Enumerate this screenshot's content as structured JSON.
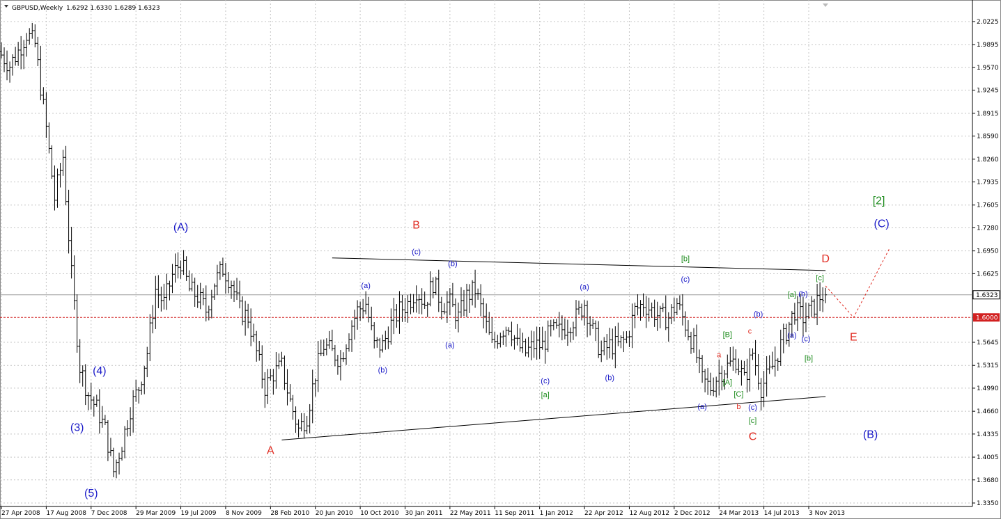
{
  "header": {
    "title": "GBPUSD,Weekly",
    "ohlc": "1.6292 1.6330 1.6289 1.6323"
  },
  "price_tags": {
    "last_price": "1.6323",
    "level_price": "1.6000"
  },
  "colors": {
    "blue": "#1a1ac8",
    "red": "#e0281e",
    "green": "#1e8c1e",
    "bars": "#000000",
    "grid": "#c4c4c4",
    "level_line": "#d22020"
  },
  "chart_data": {
    "type": "ohlc-bar",
    "symbol": "GBPUSD",
    "timeframe": "Weekly",
    "ylim": [
      1.335,
      2.04
    ],
    "y_ticks": [
      "2.0225",
      "1.9895",
      "1.9570",
      "1.9245",
      "1.8915",
      "1.8590",
      "1.8260",
      "1.7935",
      "1.7605",
      "1.7280",
      "1.6950",
      "1.6625",
      "1.6323",
      "1.6000",
      "1.5645",
      "1.5315",
      "1.4990",
      "1.4660",
      "1.4335",
      "1.4005",
      "1.3680",
      "1.3350"
    ],
    "x_ticks": [
      "27 Apr 2008",
      "17 Aug 2008",
      "7 Dec 2008",
      "29 Mar 2009",
      "19 Jul 2009",
      "8 Nov 2009",
      "28 Feb 2010",
      "20 Jun 2010",
      "10 Oct 2010",
      "30 Jan 2011",
      "22 May 2011",
      "11 Sep 2011",
      "1 Jan 2012",
      "22 Apr 2012",
      "12 Aug 2012",
      "2 Dec 2012",
      "24 Mar 2013",
      "14 Jul 2013",
      "3 Nov 2013"
    ],
    "path": [
      [
        "27 Apr 2008",
        1.975
      ],
      [
        "18 May 2008",
        1.96
      ],
      [
        "8 Jun 2008",
        1.98
      ],
      [
        "29 Jun 2008",
        2.005
      ],
      [
        "20 Jul 2008",
        1.99
      ],
      [
        "17 Aug 2008",
        1.87
      ],
      [
        "7 Sep 2008",
        1.77
      ],
      [
        "28 Sep 2008",
        1.83
      ],
      [
        "19 Oct 2008",
        1.66
      ],
      [
        "9 Nov 2008",
        1.53
      ],
      [
        "30 Nov 2008",
        1.49
      ],
      [
        "21 Dec 2008",
        1.47
      ],
      [
        "11 Jan 2009",
        1.44
      ],
      [
        "1 Feb 2009",
        1.38
      ],
      [
        "22 Feb 2009",
        1.42
      ],
      [
        "15 Mar 2009",
        1.47
      ],
      [
        "5 Apr 2009",
        1.5
      ],
      [
        "26 Apr 2009",
        1.55
      ],
      [
        "17 May 2009",
        1.64
      ],
      [
        "7 Jun 2009",
        1.62
      ],
      [
        "28 Jun 2009",
        1.66
      ],
      [
        "19 Jul 2009",
        1.68
      ],
      [
        "9 Aug 2009",
        1.64
      ],
      [
        "30 Aug 2009",
        1.63
      ],
      [
        "20 Sep 2009",
        1.61
      ],
      [
        "11 Oct 2009",
        1.65
      ],
      [
        "1 Nov 2009",
        1.67
      ],
      [
        "22 Nov 2009",
        1.65
      ],
      [
        "13 Dec 2009",
        1.61
      ],
      [
        "3 Jan 2010",
        1.6
      ],
      [
        "24 Jan 2010",
        1.55
      ],
      [
        "14 Feb 2010",
        1.5
      ],
      [
        "7 Mar 2010",
        1.52
      ],
      [
        "28 Mar 2010",
        1.53
      ],
      [
        "18 Apr 2010",
        1.48
      ],
      [
        "9 May 2010",
        1.44
      ],
      [
        "30 May 2010",
        1.46
      ],
      [
        "20 Jun 2010",
        1.52
      ],
      [
        "11 Jul 2010",
        1.56
      ],
      [
        "1 Aug 2010",
        1.55
      ],
      [
        "22 Aug 2010",
        1.54
      ],
      [
        "12 Sep 2010",
        1.58
      ],
      [
        "3 Oct 2010",
        1.61
      ],
      [
        "24 Oct 2010",
        1.62
      ],
      [
        "14 Nov 2010",
        1.56
      ],
      [
        "5 Dec 2010",
        1.56
      ],
      [
        "26 Dec 2010",
        1.59
      ],
      [
        "16 Jan 2011",
        1.61
      ],
      [
        "6 Feb 2011",
        1.62
      ],
      [
        "27 Feb 2011",
        1.64
      ],
      [
        "20 Mar 2011",
        1.62
      ],
      [
        "10 Apr 2011",
        1.65
      ],
      [
        "1 May 2011",
        1.62
      ],
      [
        "22 May 2011",
        1.62
      ],
      [
        "12 Jun 2011",
        1.6
      ],
      [
        "3 Jul 2011",
        1.63
      ],
      [
        "24 Jul 2011",
        1.64
      ],
      [
        "14 Aug 2011",
        1.6
      ],
      [
        "4 Sep 2011",
        1.56
      ],
      [
        "25 Sep 2011",
        1.58
      ],
      [
        "16 Oct 2011",
        1.59
      ],
      [
        "6 Nov 2011",
        1.56
      ],
      [
        "27 Nov 2011",
        1.55
      ],
      [
        "18 Dec 2011",
        1.56
      ],
      [
        "8 Jan 2012",
        1.56
      ],
      [
        "29 Jan 2012",
        1.58
      ],
      [
        "19 Feb 2012",
        1.58
      ],
      [
        "11 Mar 2012",
        1.59
      ],
      [
        "1 Apr 2012",
        1.6
      ],
      [
        "22 Apr 2012",
        1.62
      ],
      [
        "13 May 2012",
        1.58
      ],
      [
        "3 Jun 2012",
        1.55
      ],
      [
        "24 Jun 2012",
        1.56
      ],
      [
        "15 Jul 2012",
        1.56
      ],
      [
        "5 Aug 2012",
        1.57
      ],
      [
        "26 Aug 2012",
        1.61
      ],
      [
        "16 Sep 2012",
        1.62
      ],
      [
        "7 Oct 2012",
        1.61
      ],
      [
        "28 Oct 2012",
        1.6
      ],
      [
        "18 Nov 2012",
        1.6
      ],
      [
        "9 Dec 2012",
        1.62
      ],
      [
        "30 Dec 2012",
        1.59
      ],
      [
        "20 Jan 2013",
        1.56
      ],
      [
        "10 Feb 2013",
        1.51
      ],
      [
        "3 Mar 2013",
        1.5
      ],
      [
        "24 Mar 2013",
        1.52
      ],
      [
        "14 Apr 2013",
        1.53
      ],
      [
        "5 May 2013",
        1.54
      ],
      [
        "26 May 2013",
        1.51
      ],
      [
        "16 Jun 2013",
        1.55
      ],
      [
        "7 Jul 2013",
        1.5
      ],
      [
        "28 Jul 2013",
        1.52
      ],
      [
        "18 Aug 2013",
        1.55
      ],
      [
        "8 Sep 2013",
        1.58
      ],
      [
        "29 Sep 2013",
        1.61
      ],
      [
        "20 Oct 2013",
        1.6
      ],
      [
        "10 Nov 2013",
        1.61
      ],
      [
        "1 Dec 2013",
        1.63
      ],
      [
        "15 Dec 2013",
        1.6323
      ]
    ],
    "trendlines": [
      {
        "name": "upper",
        "from": [
          "1 Aug 2010",
          1.685
        ],
        "to": [
          "15 Dec 2013",
          1.667
        ]
      },
      {
        "name": "lower",
        "from": [
          "28 Mar 2010",
          1.425
        ],
        "to": [
          "15 Dec 2013",
          1.487
        ]
      }
    ],
    "projection": {
      "color": "red",
      "points": [
        [
          "15 Dec 2013",
          1.645
        ],
        [
          "23 Feb 2014",
          1.6
        ],
        [
          "25 May 2014",
          1.7
        ]
      ]
    },
    "horizontal_levels": [
      1.6323,
      1.6
    ],
    "annotations": [
      {
        "text": "(A)",
        "date": "19 Jul 2009",
        "price": 1.728,
        "color": "blue",
        "size": "large"
      },
      {
        "text": "(3)",
        "date": "2 Nov 2008",
        "price": 1.442,
        "color": "blue",
        "size": "large"
      },
      {
        "text": "(4)",
        "date": "28 Dec 2008",
        "price": 1.523,
        "color": "blue",
        "size": "large"
      },
      {
        "text": "(5)",
        "date": "7 Dec 2008",
        "price": 1.348,
        "color": "blue",
        "size": "large"
      },
      {
        "text": "A",
        "date": "28 Feb 2010",
        "price": 1.409,
        "color": "red",
        "size": "large"
      },
      {
        "text": "B",
        "date": "27 Feb 2011",
        "price": 1.731,
        "color": "red",
        "size": "large"
      },
      {
        "text": "(c)",
        "date": "27 Feb 2011",
        "price": 1.693,
        "color": "blue",
        "size": "small"
      },
      {
        "text": "(b)",
        "date": "29 May 2011",
        "price": 1.676,
        "color": "blue",
        "size": "small"
      },
      {
        "text": "(a)",
        "date": "24 Oct 2010",
        "price": 1.645,
        "color": "blue",
        "size": "small"
      },
      {
        "text": "(b)",
        "date": "5 Dec 2010",
        "price": 1.524,
        "color": "blue",
        "size": "small"
      },
      {
        "text": "(a)",
        "date": "22 May 2011",
        "price": 1.56,
        "color": "blue",
        "size": "small"
      },
      {
        "text": "(c)",
        "date": "15 Jan 2012",
        "price": 1.509,
        "color": "blue",
        "size": "small"
      },
      {
        "text": "[a]",
        "date": "15 Jan 2012",
        "price": 1.489,
        "color": "green",
        "size": "small"
      },
      {
        "text": "(a)",
        "date": "22 Apr 2012",
        "price": 1.643,
        "color": "blue",
        "size": "small"
      },
      {
        "text": "(b)",
        "date": "24 Jun 2012",
        "price": 1.513,
        "color": "blue",
        "size": "small"
      },
      {
        "text": "(c)",
        "date": "30 Dec 2012",
        "price": 1.654,
        "color": "blue",
        "size": "small"
      },
      {
        "text": "[b]",
        "date": "30 Dec 2012",
        "price": 1.683,
        "color": "green",
        "size": "small"
      },
      {
        "text": "(b)",
        "date": "30 Jun 2013",
        "price": 1.604,
        "color": "blue",
        "size": "small"
      },
      {
        "text": "a",
        "date": "24 Mar 2013",
        "price": 1.546,
        "color": "red",
        "size": "small"
      },
      {
        "text": "[B]",
        "date": "14 Apr 2013",
        "price": 1.575,
        "color": "green",
        "size": "small"
      },
      {
        "text": "c",
        "date": "9 Jun 2013",
        "price": 1.58,
        "color": "red",
        "size": "small"
      },
      {
        "text": "[A]",
        "date": "14 Apr 2013",
        "price": 1.507,
        "color": "green",
        "size": "small"
      },
      {
        "text": "[C]",
        "date": "12 May 2013",
        "price": 1.49,
        "color": "green",
        "size": "small"
      },
      {
        "text": "(a)",
        "date": "10 Feb 2013",
        "price": 1.472,
        "color": "blue",
        "size": "small"
      },
      {
        "text": "b",
        "date": "12 May 2013",
        "price": 1.472,
        "color": "red",
        "size": "small"
      },
      {
        "text": "(c)",
        "date": "16 Jun 2013",
        "price": 1.471,
        "color": "blue",
        "size": "small"
      },
      {
        "text": "[c]",
        "date": "16 Jun 2013",
        "price": 1.452,
        "color": "green",
        "size": "small"
      },
      {
        "text": "C",
        "date": "16 Jun 2013",
        "price": 1.429,
        "color": "red",
        "size": "large"
      },
      {
        "text": "[a]",
        "date": "22 Sep 2013",
        "price": 1.632,
        "color": "green",
        "size": "small"
      },
      {
        "text": "(b)",
        "date": "20 Oct 2013",
        "price": 1.633,
        "color": "blue",
        "size": "small"
      },
      {
        "text": "[c]",
        "date": "1 Dec 2013",
        "price": 1.656,
        "color": "green",
        "size": "small"
      },
      {
        "text": "(a)",
        "date": "22 Sep 2013",
        "price": 1.574,
        "color": "blue",
        "size": "small"
      },
      {
        "text": "(c)",
        "date": "27 Oct 2013",
        "price": 1.569,
        "color": "blue",
        "size": "small"
      },
      {
        "text": "[b]",
        "date": "3 Nov 2013",
        "price": 1.541,
        "color": "green",
        "size": "small"
      },
      {
        "text": "D",
        "date": "15 Dec 2013",
        "price": 1.683,
        "color": "red",
        "size": "large"
      },
      {
        "text": "E",
        "date": "23 Feb 2014",
        "price": 1.571,
        "color": "red",
        "size": "large"
      },
      {
        "text": "[2]",
        "date": "27 Apr 2014",
        "price": 1.766,
        "color": "green",
        "size": "large"
      },
      {
        "text": "(C)",
        "date": "4 May 2014",
        "price": 1.733,
        "color": "blue",
        "size": "large"
      },
      {
        "text": "(B)",
        "date": "6 Apr 2014",
        "price": 1.432,
        "color": "blue",
        "size": "large"
      }
    ],
    "grid": true
  }
}
